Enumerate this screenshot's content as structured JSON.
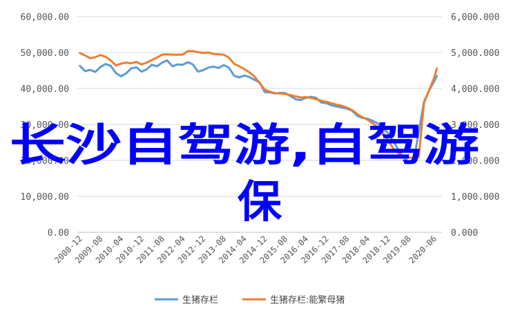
{
  "chart_data": {
    "type": "line",
    "title": "",
    "xlabel": "",
    "ylabel": "",
    "x": [
      "2008-12",
      "2009-08",
      "2010-04",
      "2010-12",
      "2011-08",
      "2012-04",
      "2012-12",
      "2013-08",
      "2014-04",
      "2014-12",
      "2015-08",
      "2016-04",
      "2016-12",
      "2017-08",
      "2018-04",
      "2018-12",
      "2019-08",
      "2020-06"
    ],
    "x_range": [
      "2008-11",
      "2020-09"
    ],
    "y_left_ticks": [
      "0.00",
      "10,000.00",
      "20,000.00",
      "30,000.00",
      "40,000.00",
      "50,000.00",
      "60,000.00"
    ],
    "y_right_ticks": [
      "0.000",
      "1,000.000",
      "2,000.000",
      "3,000.000",
      "4,000.000",
      "5,000.000",
      "6,000.000"
    ],
    "ylim_left": [
      0,
      60000
    ],
    "ylim_right": [
      0,
      6000
    ],
    "grid": "horizontal",
    "legend_position": "bottom",
    "series": [
      {
        "name": "生猪存栏",
        "axis": "left",
        "color": "#5b9bd5",
        "points": [
          [
            "2008-12",
            46300
          ],
          [
            "2009-02",
            44800
          ],
          [
            "2009-04",
            45200
          ],
          [
            "2009-06",
            44600
          ],
          [
            "2009-08",
            46000
          ],
          [
            "2009-10",
            46800
          ],
          [
            "2009-12",
            46300
          ],
          [
            "2010-02",
            44300
          ],
          [
            "2010-04",
            43400
          ],
          [
            "2010-06",
            44200
          ],
          [
            "2010-08",
            45600
          ],
          [
            "2010-10",
            45900
          ],
          [
            "2010-12",
            44700
          ],
          [
            "2011-02",
            45300
          ],
          [
            "2011-04",
            46600
          ],
          [
            "2011-06",
            46200
          ],
          [
            "2011-08",
            47200
          ],
          [
            "2011-10",
            47800
          ],
          [
            "2011-12",
            46200
          ],
          [
            "2012-02",
            46700
          ],
          [
            "2012-04",
            46600
          ],
          [
            "2012-06",
            47300
          ],
          [
            "2012-08",
            46700
          ],
          [
            "2012-10",
            44700
          ],
          [
            "2012-12",
            45100
          ],
          [
            "2013-02",
            45800
          ],
          [
            "2013-04",
            46100
          ],
          [
            "2013-06",
            45700
          ],
          [
            "2013-08",
            46500
          ],
          [
            "2013-10",
            45800
          ],
          [
            "2013-12",
            43600
          ],
          [
            "2014-02",
            43100
          ],
          [
            "2014-04",
            43600
          ],
          [
            "2014-06",
            43200
          ],
          [
            "2014-08",
            42400
          ],
          [
            "2014-10",
            41700
          ],
          [
            "2014-12",
            39000
          ],
          [
            "2015-02",
            38900
          ],
          [
            "2015-04",
            38600
          ],
          [
            "2015-06",
            38800
          ],
          [
            "2015-08",
            38700
          ],
          [
            "2015-10",
            37900
          ],
          [
            "2015-12",
            37000
          ],
          [
            "2016-02",
            36800
          ],
          [
            "2016-04",
            37400
          ],
          [
            "2016-06",
            37700
          ],
          [
            "2016-08",
            37400
          ],
          [
            "2016-10",
            36100
          ],
          [
            "2016-12",
            35900
          ],
          [
            "2017-02",
            35300
          ],
          [
            "2017-04",
            35000
          ],
          [
            "2017-06",
            34700
          ],
          [
            "2017-08",
            34400
          ],
          [
            "2017-10",
            33800
          ],
          [
            "2017-12",
            32400
          ],
          [
            "2018-02",
            31800
          ],
          [
            "2018-04",
            31600
          ],
          [
            "2018-06",
            31000
          ],
          [
            "2018-08",
            30300
          ],
          [
            "2018-10",
            28800
          ],
          [
            "2018-12",
            27600
          ],
          [
            "2019-02",
            25300
          ],
          [
            "2019-04",
            23000
          ],
          [
            "2019-06",
            20800
          ],
          [
            "2019-08",
            19600
          ],
          [
            "2019-10",
            19900
          ],
          [
            "2019-12",
            28000
          ],
          [
            "2020-02",
            36300
          ],
          [
            "2020-04",
            39500
          ],
          [
            "2020-06",
            42000
          ],
          [
            "2020-07",
            43500
          ]
        ]
      },
      {
        "name": "生猪存栏:能繁母猪",
        "axis": "right",
        "color": "#ed7d31",
        "points": [
          [
            "2008-12",
            4990
          ],
          [
            "2009-02",
            4920
          ],
          [
            "2009-04",
            4840
          ],
          [
            "2009-06",
            4870
          ],
          [
            "2009-08",
            4930
          ],
          [
            "2009-10",
            4880
          ],
          [
            "2009-12",
            4780
          ],
          [
            "2010-02",
            4640
          ],
          [
            "2010-04",
            4690
          ],
          [
            "2010-06",
            4720
          ],
          [
            "2010-08",
            4700
          ],
          [
            "2010-10",
            4740
          ],
          [
            "2010-12",
            4670
          ],
          [
            "2011-02",
            4720
          ],
          [
            "2011-04",
            4790
          ],
          [
            "2011-06",
            4860
          ],
          [
            "2011-08",
            4940
          ],
          [
            "2011-10",
            4950
          ],
          [
            "2011-12",
            4940
          ],
          [
            "2012-02",
            4940
          ],
          [
            "2012-04",
            4940
          ],
          [
            "2012-06",
            5040
          ],
          [
            "2012-08",
            5040
          ],
          [
            "2012-10",
            5010
          ],
          [
            "2012-12",
            4990
          ],
          [
            "2013-02",
            5000
          ],
          [
            "2013-04",
            4960
          ],
          [
            "2013-06",
            4950
          ],
          [
            "2013-08",
            4940
          ],
          [
            "2013-10",
            4860
          ],
          [
            "2013-12",
            4690
          ],
          [
            "2014-02",
            4620
          ],
          [
            "2014-04",
            4540
          ],
          [
            "2014-06",
            4450
          ],
          [
            "2014-08",
            4330
          ],
          [
            "2014-10",
            4150
          ],
          [
            "2014-12",
            3970
          ],
          [
            "2015-02",
            3910
          ],
          [
            "2015-04",
            3870
          ],
          [
            "2015-06",
            3860
          ],
          [
            "2015-08",
            3850
          ],
          [
            "2015-10",
            3820
          ],
          [
            "2015-12",
            3780
          ],
          [
            "2016-02",
            3750
          ],
          [
            "2016-04",
            3760
          ],
          [
            "2016-06",
            3740
          ],
          [
            "2016-08",
            3700
          ],
          [
            "2016-10",
            3660
          ],
          [
            "2016-12",
            3630
          ],
          [
            "2017-02",
            3590
          ],
          [
            "2017-04",
            3550
          ],
          [
            "2017-06",
            3520
          ],
          [
            "2017-08",
            3470
          ],
          [
            "2017-10",
            3400
          ],
          [
            "2017-12",
            3290
          ],
          [
            "2018-02",
            3200
          ],
          [
            "2018-04",
            3130
          ],
          [
            "2018-06",
            3030
          ],
          [
            "2018-08",
            2920
          ],
          [
            "2018-10",
            2780
          ],
          [
            "2018-12",
            2550
          ],
          [
            "2019-02",
            2340
          ],
          [
            "2019-04",
            2200
          ],
          [
            "2019-06",
            2120
          ],
          [
            "2019-08",
            2080
          ],
          [
            "2019-10",
            2070
          ],
          [
            "2019-12",
            2100
          ],
          [
            "2020-02",
            3600
          ],
          [
            "2020-04",
            3950
          ],
          [
            "2020-06",
            4300
          ],
          [
            "2020-07",
            4560
          ]
        ]
      }
    ]
  },
  "overlay": {
    "line1": "长沙自驾游,自驾游",
    "line2": "保"
  }
}
